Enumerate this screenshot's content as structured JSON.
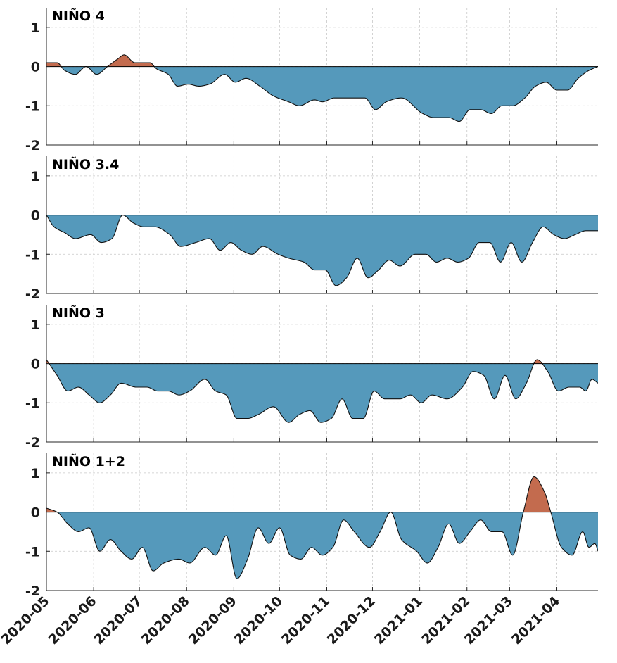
{
  "chart_data": {
    "type": "area",
    "xlabel": "",
    "ylabel": "",
    "x_range": [
      "2020-05-01",
      "2021-04-28"
    ],
    "x_tick_labels": [
      "2020-05",
      "2020-06",
      "2020-07",
      "2020-08",
      "2020-09",
      "2020-10",
      "2020-11",
      "2020-12",
      "2021-01",
      "2021-02",
      "2021-03",
      "2021-04"
    ],
    "ylim": [
      -2,
      1.5
    ],
    "y_ticks": [
      -2,
      -1,
      0,
      1
    ],
    "grid": true,
    "colors": {
      "positive": "#c36b4e",
      "negative": "#5599bb"
    },
    "panels": [
      {
        "title": "NIÑO 4",
        "series": [
          {
            "x": "2020-05-01",
            "y": 0.1
          },
          {
            "x": "2020-05-08",
            "y": 0.1
          },
          {
            "x": "2020-05-13",
            "y": -0.1
          },
          {
            "x": "2020-05-20",
            "y": -0.2
          },
          {
            "x": "2020-05-27",
            "y": 0.0
          },
          {
            "x": "2020-06-03",
            "y": -0.2
          },
          {
            "x": "2020-06-10",
            "y": 0.0
          },
          {
            "x": "2020-06-17",
            "y": 0.2
          },
          {
            "x": "2020-06-21",
            "y": 0.3
          },
          {
            "x": "2020-06-28",
            "y": 0.1
          },
          {
            "x": "2020-07-08",
            "y": 0.1
          },
          {
            "x": "2020-07-12",
            "y": -0.05
          },
          {
            "x": "2020-07-20",
            "y": -0.2
          },
          {
            "x": "2020-07-26",
            "y": -0.5
          },
          {
            "x": "2020-08-02",
            "y": -0.45
          },
          {
            "x": "2020-08-09",
            "y": -0.5
          },
          {
            "x": "2020-08-16",
            "y": -0.45
          },
          {
            "x": "2020-08-26",
            "y": -0.2
          },
          {
            "x": "2020-09-02",
            "y": -0.4
          },
          {
            "x": "2020-09-09",
            "y": -0.3
          },
          {
            "x": "2020-09-18",
            "y": -0.5
          },
          {
            "x": "2020-09-27",
            "y": -0.75
          },
          {
            "x": "2020-10-07",
            "y": -0.9
          },
          {
            "x": "2020-10-14",
            "y": -1.0
          },
          {
            "x": "2020-10-24",
            "y": -0.85
          },
          {
            "x": "2020-10-29",
            "y": -0.9
          },
          {
            "x": "2020-11-06",
            "y": -0.8
          },
          {
            "x": "2020-11-26",
            "y": -0.8
          },
          {
            "x": "2020-12-03",
            "y": -1.1
          },
          {
            "x": "2020-12-10",
            "y": -0.9
          },
          {
            "x": "2020-12-20",
            "y": -0.8
          },
          {
            "x": "2021-01-03",
            "y": -1.2
          },
          {
            "x": "2021-01-10",
            "y": -1.3
          },
          {
            "x": "2021-01-20",
            "y": -1.3
          },
          {
            "x": "2021-01-27",
            "y": -1.4
          },
          {
            "x": "2021-02-03",
            "y": -1.1
          },
          {
            "x": "2021-02-10",
            "y": -1.1
          },
          {
            "x": "2021-02-17",
            "y": -1.2
          },
          {
            "x": "2021-02-24",
            "y": -1.0
          },
          {
            "x": "2021-03-03",
            "y": -1.0
          },
          {
            "x": "2021-03-11",
            "y": -0.8
          },
          {
            "x": "2021-03-18",
            "y": -0.5
          },
          {
            "x": "2021-03-25",
            "y": -0.4
          },
          {
            "x": "2021-04-01",
            "y": -0.6
          },
          {
            "x": "2021-04-08",
            "y": -0.6
          },
          {
            "x": "2021-04-15",
            "y": -0.3
          },
          {
            "x": "2021-04-22",
            "y": -0.1
          },
          {
            "x": "2021-04-28",
            "y": 0.0
          }
        ]
      },
      {
        "title": "NIÑO 3.4",
        "series": [
          {
            "x": "2020-05-01",
            "y": 0.0
          },
          {
            "x": "2020-05-06",
            "y": -0.3
          },
          {
            "x": "2020-05-13",
            "y": -0.45
          },
          {
            "x": "2020-05-20",
            "y": -0.6
          },
          {
            "x": "2020-05-30",
            "y": -0.5
          },
          {
            "x": "2020-06-06",
            "y": -0.7
          },
          {
            "x": "2020-06-13",
            "y": -0.6
          },
          {
            "x": "2020-06-20",
            "y": 0.0
          },
          {
            "x": "2020-06-27",
            "y": -0.2
          },
          {
            "x": "2020-07-04",
            "y": -0.3
          },
          {
            "x": "2020-07-11",
            "y": -0.3
          },
          {
            "x": "2020-07-21",
            "y": -0.5
          },
          {
            "x": "2020-07-28",
            "y": -0.8
          },
          {
            "x": "2020-08-07",
            "y": -0.7
          },
          {
            "x": "2020-08-16",
            "y": -0.6
          },
          {
            "x": "2020-08-23",
            "y": -0.9
          },
          {
            "x": "2020-08-30",
            "y": -0.7
          },
          {
            "x": "2020-09-06",
            "y": -0.9
          },
          {
            "x": "2020-09-13",
            "y": -1.0
          },
          {
            "x": "2020-09-20",
            "y": -0.8
          },
          {
            "x": "2020-09-30",
            "y": -1.0
          },
          {
            "x": "2020-10-07",
            "y": -1.1
          },
          {
            "x": "2020-10-17",
            "y": -1.2
          },
          {
            "x": "2020-10-24",
            "y": -1.4
          },
          {
            "x": "2020-10-31",
            "y": -1.4
          },
          {
            "x": "2020-11-07",
            "y": -1.8
          },
          {
            "x": "2020-11-14",
            "y": -1.6
          },
          {
            "x": "2020-11-21",
            "y": -1.1
          },
          {
            "x": "2020-11-28",
            "y": -1.6
          },
          {
            "x": "2020-12-05",
            "y": -1.4
          },
          {
            "x": "2020-12-12",
            "y": -1.15
          },
          {
            "x": "2020-12-19",
            "y": -1.3
          },
          {
            "x": "2020-12-29",
            "y": -1.0
          },
          {
            "x": "2021-01-05",
            "y": -1.0
          },
          {
            "x": "2021-01-12",
            "y": -1.2
          },
          {
            "x": "2021-01-19",
            "y": -1.1
          },
          {
            "x": "2021-01-26",
            "y": -1.2
          },
          {
            "x": "2021-02-02",
            "y": -1.1
          },
          {
            "x": "2021-02-09",
            "y": -0.7
          },
          {
            "x": "2021-02-16",
            "y": -0.7
          },
          {
            "x": "2021-02-23",
            "y": -1.2
          },
          {
            "x": "2021-03-02",
            "y": -0.7
          },
          {
            "x": "2021-03-09",
            "y": -1.2
          },
          {
            "x": "2021-03-16",
            "y": -0.7
          },
          {
            "x": "2021-03-23",
            "y": -0.3
          },
          {
            "x": "2021-03-30",
            "y": -0.5
          },
          {
            "x": "2021-04-06",
            "y": -0.6
          },
          {
            "x": "2021-04-13",
            "y": -0.5
          },
          {
            "x": "2021-04-20",
            "y": -0.4
          },
          {
            "x": "2021-04-28",
            "y": -0.4
          }
        ]
      },
      {
        "title": "NIÑO 3",
        "series": [
          {
            "x": "2020-05-01",
            "y": 0.1
          },
          {
            "x": "2020-05-08",
            "y": -0.3
          },
          {
            "x": "2020-05-15",
            "y": -0.7
          },
          {
            "x": "2020-05-22",
            "y": -0.6
          },
          {
            "x": "2020-05-29",
            "y": -0.8
          },
          {
            "x": "2020-06-05",
            "y": -1.0
          },
          {
            "x": "2020-06-12",
            "y": -0.8
          },
          {
            "x": "2020-06-19",
            "y": -0.5
          },
          {
            "x": "2020-06-29",
            "y": -0.6
          },
          {
            "x": "2020-07-06",
            "y": -0.6
          },
          {
            "x": "2020-07-13",
            "y": -0.7
          },
          {
            "x": "2020-07-20",
            "y": -0.7
          },
          {
            "x": "2020-07-27",
            "y": -0.8
          },
          {
            "x": "2020-08-03",
            "y": -0.7
          },
          {
            "x": "2020-08-13",
            "y": -0.4
          },
          {
            "x": "2020-08-20",
            "y": -0.7
          },
          {
            "x": "2020-08-27",
            "y": -0.8
          },
          {
            "x": "2020-09-03",
            "y": -1.4
          },
          {
            "x": "2020-09-10",
            "y": -1.4
          },
          {
            "x": "2020-09-17",
            "y": -1.3
          },
          {
            "x": "2020-09-27",
            "y": -1.1
          },
          {
            "x": "2020-10-07",
            "y": -1.5
          },
          {
            "x": "2020-10-14",
            "y": -1.3
          },
          {
            "x": "2020-10-21",
            "y": -1.2
          },
          {
            "x": "2020-10-28",
            "y": -1.5
          },
          {
            "x": "2020-11-04",
            "y": -1.4
          },
          {
            "x": "2020-11-11",
            "y": -0.9
          },
          {
            "x": "2020-11-18",
            "y": -1.4
          },
          {
            "x": "2020-11-25",
            "y": -1.4
          },
          {
            "x": "2020-12-02",
            "y": -0.7
          },
          {
            "x": "2020-12-09",
            "y": -0.9
          },
          {
            "x": "2020-12-19",
            "y": -0.9
          },
          {
            "x": "2020-12-26",
            "y": -0.8
          },
          {
            "x": "2021-01-02",
            "y": -1.0
          },
          {
            "x": "2021-01-09",
            "y": -0.8
          },
          {
            "x": "2021-01-19",
            "y": -0.9
          },
          {
            "x": "2021-01-29",
            "y": -0.6
          },
          {
            "x": "2021-02-05",
            "y": -0.2
          },
          {
            "x": "2021-02-12",
            "y": -0.3
          },
          {
            "x": "2021-02-19",
            "y": -0.9
          },
          {
            "x": "2021-02-26",
            "y": -0.3
          },
          {
            "x": "2021-03-05",
            "y": -0.9
          },
          {
            "x": "2021-03-12",
            "y": -0.5
          },
          {
            "x": "2021-03-19",
            "y": 0.1
          },
          {
            "x": "2021-03-26",
            "y": -0.2
          },
          {
            "x": "2021-04-02",
            "y": -0.7
          },
          {
            "x": "2021-04-09",
            "y": -0.6
          },
          {
            "x": "2021-04-16",
            "y": -0.6
          },
          {
            "x": "2021-04-20",
            "y": -0.7
          },
          {
            "x": "2021-04-24",
            "y": -0.4
          },
          {
            "x": "2021-04-28",
            "y": -0.5
          }
        ]
      },
      {
        "title": "NIÑO 1+2",
        "series": [
          {
            "x": "2020-05-01",
            "y": 0.1
          },
          {
            "x": "2020-05-08",
            "y": 0.0
          },
          {
            "x": "2020-05-15",
            "y": -0.3
          },
          {
            "x": "2020-05-22",
            "y": -0.5
          },
          {
            "x": "2020-05-29",
            "y": -0.4
          },
          {
            "x": "2020-06-05",
            "y": -1.0
          },
          {
            "x": "2020-06-12",
            "y": -0.7
          },
          {
            "x": "2020-06-19",
            "y": -1.0
          },
          {
            "x": "2020-06-26",
            "y": -1.2
          },
          {
            "x": "2020-07-03",
            "y": -0.9
          },
          {
            "x": "2020-07-10",
            "y": -1.5
          },
          {
            "x": "2020-07-17",
            "y": -1.3
          },
          {
            "x": "2020-07-27",
            "y": -1.2
          },
          {
            "x": "2020-08-03",
            "y": -1.3
          },
          {
            "x": "2020-08-13",
            "y": -0.9
          },
          {
            "x": "2020-08-20",
            "y": -1.1
          },
          {
            "x": "2020-08-27",
            "y": -0.6
          },
          {
            "x": "2020-09-03",
            "y": -1.7
          },
          {
            "x": "2020-09-10",
            "y": -1.2
          },
          {
            "x": "2020-09-17",
            "y": -0.4
          },
          {
            "x": "2020-09-24",
            "y": -0.8
          },
          {
            "x": "2020-10-01",
            "y": -0.4
          },
          {
            "x": "2020-10-08",
            "y": -1.1
          },
          {
            "x": "2020-10-15",
            "y": -1.2
          },
          {
            "x": "2020-10-22",
            "y": -0.9
          },
          {
            "x": "2020-10-29",
            "y": -1.1
          },
          {
            "x": "2020-11-05",
            "y": -0.9
          },
          {
            "x": "2020-11-12",
            "y": -0.2
          },
          {
            "x": "2020-11-19",
            "y": -0.5
          },
          {
            "x": "2020-11-29",
            "y": -0.9
          },
          {
            "x": "2020-12-06",
            "y": -0.5
          },
          {
            "x": "2020-12-13",
            "y": 0.0
          },
          {
            "x": "2020-12-20",
            "y": -0.7
          },
          {
            "x": "2020-12-30",
            "y": -1.0
          },
          {
            "x": "2021-01-06",
            "y": -1.3
          },
          {
            "x": "2021-01-13",
            "y": -0.9
          },
          {
            "x": "2021-01-20",
            "y": -0.3
          },
          {
            "x": "2021-01-27",
            "y": -0.8
          },
          {
            "x": "2021-02-03",
            "y": -0.5
          },
          {
            "x": "2021-02-10",
            "y": -0.2
          },
          {
            "x": "2021-02-17",
            "y": -0.5
          },
          {
            "x": "2021-02-24",
            "y": -0.5
          },
          {
            "x": "2021-03-03",
            "y": -1.1
          },
          {
            "x": "2021-03-10",
            "y": 0.0
          },
          {
            "x": "2021-03-17",
            "y": 0.9
          },
          {
            "x": "2021-03-24",
            "y": 0.5
          },
          {
            "x": "2021-03-28",
            "y": 0.0
          },
          {
            "x": "2021-04-04",
            "y": -0.9
          },
          {
            "x": "2021-04-11",
            "y": -1.1
          },
          {
            "x": "2021-04-18",
            "y": -0.5
          },
          {
            "x": "2021-04-22",
            "y": -0.9
          },
          {
            "x": "2021-04-26",
            "y": -0.8
          },
          {
            "x": "2021-04-28",
            "y": -1.0
          }
        ]
      }
    ]
  }
}
